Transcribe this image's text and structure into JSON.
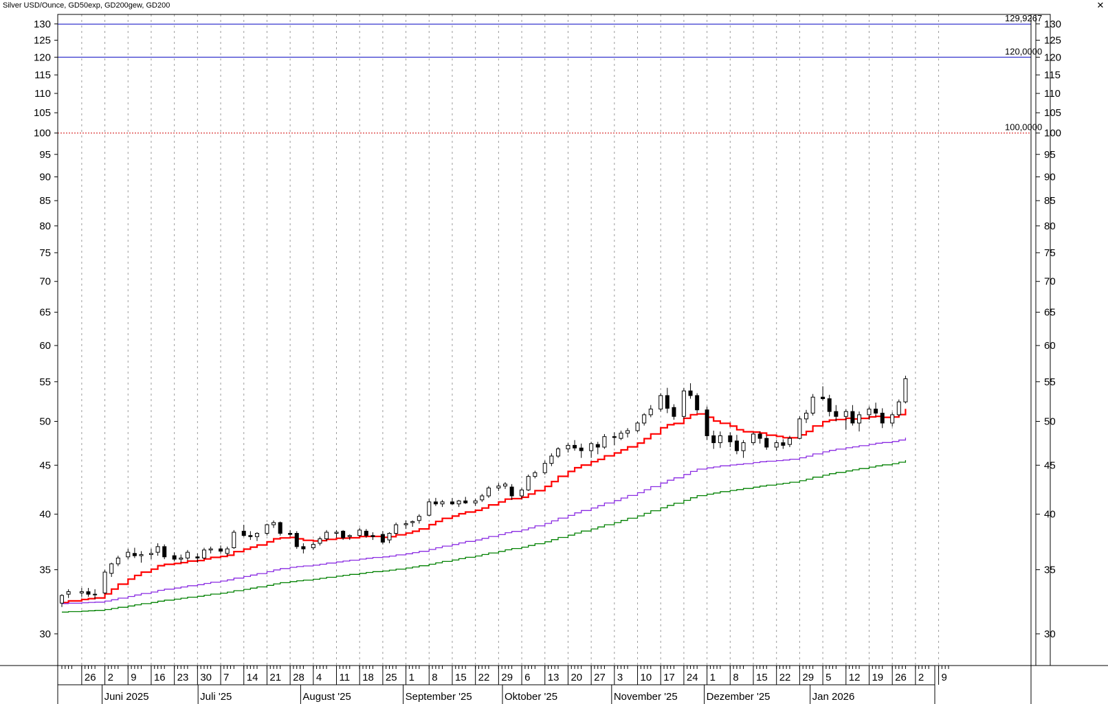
{
  "window": {
    "title": "Silver USD/Ounce,  GD50exp,  GD200gew,  GD200",
    "close_icon": "close-icon"
  },
  "chart_data": {
    "type": "candlestick",
    "symbol": "Silver USD/Ounce",
    "indicators": [
      "GD50exp",
      "GD200gew",
      "GD200"
    ],
    "y_scale": "log",
    "ylim": [
      27.8,
      133
    ],
    "y_ticks": [
      30,
      35,
      40,
      45,
      50,
      55,
      60,
      65,
      70,
      75,
      80,
      85,
      90,
      95,
      100,
      105,
      110,
      115,
      120,
      125,
      130
    ],
    "y_tick_labels": [
      "30",
      "35",
      "40",
      "45",
      "50",
      "55",
      "60",
      "65",
      "70",
      "75",
      "80",
      "85",
      "90",
      "95",
      "100",
      "105",
      "110",
      "115",
      "120",
      "125",
      "130"
    ],
    "horizontal_lines": [
      {
        "value": 129.9267,
        "label": "129,9267",
        "color": "#0000c0",
        "style": "solid"
      },
      {
        "value": 120.0,
        "label": "120,0000",
        "color": "#0000c0",
        "style": "solid"
      },
      {
        "value": 100.0,
        "label": "100,0000",
        "color": "#d00000",
        "style": "dotted"
      }
    ],
    "x_day_labels": [
      "26",
      "2",
      "9",
      "16",
      "23",
      "30",
      "7",
      "14",
      "21",
      "28",
      "4",
      "11",
      "18",
      "25",
      "1",
      "8",
      "15",
      "22",
      "29",
      "6",
      "13",
      "20",
      "27",
      "3",
      "10",
      "17",
      "24",
      "1",
      "8",
      "15",
      "22",
      "29",
      "5",
      "12",
      "19",
      "26",
      "2",
      "9"
    ],
    "x_month_labels": [
      "Juni 2025",
      "Juli '25",
      "August '25",
      "September '25",
      "Oktober '25",
      "November '25",
      "Dezember '25",
      "Jan 2026"
    ],
    "x_range": [
      "2025-05-20",
      "2026-02-12"
    ],
    "candles": [
      {
        "d": "2025-05-20",
        "o": 32.3,
        "h": 33.0,
        "l": 32.0,
        "c": 32.9
      },
      {
        "d": "2025-05-22",
        "o": 33.0,
        "h": 33.4,
        "l": 32.7,
        "c": 33.2
      },
      {
        "d": "2025-05-26",
        "o": 33.1,
        "h": 33.5,
        "l": 32.8,
        "c": 33.2
      },
      {
        "d": "2025-05-28",
        "o": 33.2,
        "h": 33.5,
        "l": 32.8,
        "c": 33.0
      },
      {
        "d": "2025-05-30",
        "o": 33.0,
        "h": 33.4,
        "l": 32.6,
        "c": 33.0
      },
      {
        "d": "2025-06-02",
        "o": 33.1,
        "h": 35.0,
        "l": 33.0,
        "c": 34.8
      },
      {
        "d": "2025-06-04",
        "o": 34.7,
        "h": 35.6,
        "l": 34.4,
        "c": 35.5
      },
      {
        "d": "2025-06-06",
        "o": 35.5,
        "h": 36.2,
        "l": 35.3,
        "c": 36.0
      },
      {
        "d": "2025-06-09",
        "o": 36.1,
        "h": 36.8,
        "l": 35.9,
        "c": 36.5
      },
      {
        "d": "2025-06-11",
        "o": 36.4,
        "h": 36.9,
        "l": 36.0,
        "c": 36.2
      },
      {
        "d": "2025-06-13",
        "o": 36.2,
        "h": 36.6,
        "l": 35.6,
        "c": 36.3
      },
      {
        "d": "2025-06-16",
        "o": 36.3,
        "h": 36.8,
        "l": 35.9,
        "c": 36.4
      },
      {
        "d": "2025-06-18",
        "o": 36.5,
        "h": 37.3,
        "l": 36.2,
        "c": 37.0
      },
      {
        "d": "2025-06-20",
        "o": 37.0,
        "h": 37.2,
        "l": 35.9,
        "c": 36.1
      },
      {
        "d": "2025-06-23",
        "o": 36.2,
        "h": 36.5,
        "l": 35.7,
        "c": 35.9
      },
      {
        "d": "2025-06-25",
        "o": 35.9,
        "h": 36.3,
        "l": 35.6,
        "c": 36.0
      },
      {
        "d": "2025-06-27",
        "o": 36.0,
        "h": 36.7,
        "l": 35.8,
        "c": 36.5
      },
      {
        "d": "2025-06-30",
        "o": 36.1,
        "h": 36.4,
        "l": 35.6,
        "c": 36.0
      },
      {
        "d": "2025-07-02",
        "o": 36.0,
        "h": 36.9,
        "l": 35.9,
        "c": 36.7
      },
      {
        "d": "2025-07-04",
        "o": 36.7,
        "h": 37.0,
        "l": 36.4,
        "c": 36.8
      },
      {
        "d": "2025-07-07",
        "o": 36.8,
        "h": 37.1,
        "l": 36.4,
        "c": 36.6
      },
      {
        "d": "2025-07-09",
        "o": 36.4,
        "h": 37.0,
        "l": 36.2,
        "c": 36.8
      },
      {
        "d": "2025-07-11",
        "o": 36.9,
        "h": 38.5,
        "l": 36.8,
        "c": 38.3
      },
      {
        "d": "2025-07-14",
        "o": 38.4,
        "h": 39.0,
        "l": 37.9,
        "c": 38.0
      },
      {
        "d": "2025-07-16",
        "o": 38.0,
        "h": 38.4,
        "l": 37.6,
        "c": 37.9
      },
      {
        "d": "2025-07-18",
        "o": 37.9,
        "h": 38.3,
        "l": 37.5,
        "c": 38.2
      },
      {
        "d": "2025-07-21",
        "o": 38.2,
        "h": 39.1,
        "l": 38.0,
        "c": 39.0
      },
      {
        "d": "2025-07-23",
        "o": 39.0,
        "h": 39.4,
        "l": 38.7,
        "c": 39.2
      },
      {
        "d": "2025-07-25",
        "o": 39.2,
        "h": 39.3,
        "l": 38.0,
        "c": 38.2
      },
      {
        "d": "2025-07-28",
        "o": 38.2,
        "h": 38.5,
        "l": 37.9,
        "c": 38.1
      },
      {
        "d": "2025-07-30",
        "o": 38.2,
        "h": 38.4,
        "l": 36.8,
        "c": 37.0
      },
      {
        "d": "2025-08-01",
        "o": 37.0,
        "h": 37.3,
        "l": 36.4,
        "c": 36.8
      },
      {
        "d": "2025-08-04",
        "o": 36.9,
        "h": 37.4,
        "l": 36.7,
        "c": 37.2
      },
      {
        "d": "2025-08-06",
        "o": 37.3,
        "h": 37.9,
        "l": 37.1,
        "c": 37.7
      },
      {
        "d": "2025-08-08",
        "o": 37.7,
        "h": 38.5,
        "l": 37.5,
        "c": 38.3
      },
      {
        "d": "2025-08-11",
        "o": 38.2,
        "h": 38.5,
        "l": 37.8,
        "c": 38.3
      },
      {
        "d": "2025-08-13",
        "o": 38.4,
        "h": 38.5,
        "l": 37.6,
        "c": 37.8
      },
      {
        "d": "2025-08-15",
        "o": 37.9,
        "h": 38.1,
        "l": 37.6,
        "c": 38.0
      },
      {
        "d": "2025-08-18",
        "o": 38.0,
        "h": 38.7,
        "l": 37.9,
        "c": 38.5
      },
      {
        "d": "2025-08-20",
        "o": 38.4,
        "h": 38.6,
        "l": 37.8,
        "c": 38.0
      },
      {
        "d": "2025-08-22",
        "o": 38.0,
        "h": 38.3,
        "l": 37.6,
        "c": 37.9
      },
      {
        "d": "2025-08-25",
        "o": 38.1,
        "h": 38.4,
        "l": 37.2,
        "c": 37.4
      },
      {
        "d": "2025-08-27",
        "o": 37.6,
        "h": 38.3,
        "l": 37.3,
        "c": 38.2
      },
      {
        "d": "2025-08-29",
        "o": 38.2,
        "h": 39.2,
        "l": 38.1,
        "c": 39.0
      },
      {
        "d": "2025-09-01",
        "o": 39.0,
        "h": 39.4,
        "l": 38.6,
        "c": 39.1
      },
      {
        "d": "2025-09-03",
        "o": 39.2,
        "h": 39.4,
        "l": 38.8,
        "c": 39.3
      },
      {
        "d": "2025-09-05",
        "o": 39.4,
        "h": 40.0,
        "l": 39.1,
        "c": 39.8
      },
      {
        "d": "2025-09-08",
        "o": 39.9,
        "h": 41.5,
        "l": 39.8,
        "c": 41.2
      },
      {
        "d": "2025-09-10",
        "o": 41.2,
        "h": 41.6,
        "l": 40.8,
        "c": 41.0
      },
      {
        "d": "2025-09-12",
        "o": 41.0,
        "h": 41.4,
        "l": 40.7,
        "c": 41.2
      },
      {
        "d": "2025-09-15",
        "o": 41.2,
        "h": 41.6,
        "l": 40.9,
        "c": 41.0
      },
      {
        "d": "2025-09-17",
        "o": 41.0,
        "h": 41.4,
        "l": 40.7,
        "c": 41.3
      },
      {
        "d": "2025-09-19",
        "o": 41.3,
        "h": 41.7,
        "l": 41.0,
        "c": 41.1
      },
      {
        "d": "2025-09-22",
        "o": 41.1,
        "h": 41.5,
        "l": 40.8,
        "c": 41.3
      },
      {
        "d": "2025-09-24",
        "o": 41.4,
        "h": 42.0,
        "l": 41.2,
        "c": 41.8
      },
      {
        "d": "2025-09-26",
        "o": 41.8,
        "h": 42.8,
        "l": 41.6,
        "c": 42.6
      },
      {
        "d": "2025-09-29",
        "o": 42.6,
        "h": 43.1,
        "l": 42.3,
        "c": 42.8
      },
      {
        "d": "2025-10-01",
        "o": 42.8,
        "h": 43.2,
        "l": 42.5,
        "c": 43.0
      },
      {
        "d": "2025-10-03",
        "o": 42.7,
        "h": 43.0,
        "l": 41.4,
        "c": 41.8
      },
      {
        "d": "2025-10-06",
        "o": 41.8,
        "h": 42.6,
        "l": 41.5,
        "c": 42.4
      },
      {
        "d": "2025-10-08",
        "o": 42.4,
        "h": 44.0,
        "l": 42.3,
        "c": 43.8
      },
      {
        "d": "2025-10-10",
        "o": 43.8,
        "h": 44.4,
        "l": 43.6,
        "c": 44.2
      },
      {
        "d": "2025-10-13",
        "o": 44.2,
        "h": 45.5,
        "l": 44.0,
        "c": 45.2
      },
      {
        "d": "2025-10-15",
        "o": 45.2,
        "h": 46.3,
        "l": 44.9,
        "c": 46.0
      },
      {
        "d": "2025-10-17",
        "o": 46.0,
        "h": 47.0,
        "l": 45.8,
        "c": 46.8
      },
      {
        "d": "2025-10-20",
        "o": 46.8,
        "h": 47.5,
        "l": 46.4,
        "c": 47.2
      },
      {
        "d": "2025-10-22",
        "o": 47.2,
        "h": 47.8,
        "l": 46.6,
        "c": 46.9
      },
      {
        "d": "2025-10-24",
        "o": 46.9,
        "h": 47.4,
        "l": 45.8,
        "c": 46.6
      },
      {
        "d": "2025-10-27",
        "o": 46.6,
        "h": 47.6,
        "l": 45.8,
        "c": 47.4
      },
      {
        "d": "2025-10-29",
        "o": 47.3,
        "h": 47.6,
        "l": 46.2,
        "c": 47.0
      },
      {
        "d": "2025-10-31",
        "o": 47.0,
        "h": 48.5,
        "l": 46.8,
        "c": 48.2
      },
      {
        "d": "2025-11-03",
        "o": 48.2,
        "h": 48.7,
        "l": 47.2,
        "c": 48.1
      },
      {
        "d": "2025-11-05",
        "o": 48.0,
        "h": 48.9,
        "l": 47.8,
        "c": 48.6
      },
      {
        "d": "2025-11-07",
        "o": 48.6,
        "h": 49.2,
        "l": 48.1,
        "c": 48.9
      },
      {
        "d": "2025-11-10",
        "o": 48.9,
        "h": 50.0,
        "l": 48.7,
        "c": 49.8
      },
      {
        "d": "2025-11-12",
        "o": 49.8,
        "h": 51.0,
        "l": 49.5,
        "c": 50.8
      },
      {
        "d": "2025-11-14",
        "o": 50.8,
        "h": 52.0,
        "l": 50.5,
        "c": 51.5
      },
      {
        "d": "2025-11-17",
        "o": 51.5,
        "h": 53.5,
        "l": 51.2,
        "c": 53.2
      },
      {
        "d": "2025-11-19",
        "o": 53.2,
        "h": 54.2,
        "l": 51.0,
        "c": 51.6
      },
      {
        "d": "2025-11-21",
        "o": 51.7,
        "h": 52.1,
        "l": 50.2,
        "c": 50.6
      },
      {
        "d": "2025-11-24",
        "o": 50.6,
        "h": 54.2,
        "l": 50.3,
        "c": 53.8
      },
      {
        "d": "2025-11-26",
        "o": 53.8,
        "h": 54.8,
        "l": 52.8,
        "c": 53.2
      },
      {
        "d": "2025-11-28",
        "o": 53.2,
        "h": 53.5,
        "l": 51.0,
        "c": 51.4
      },
      {
        "d": "2025-12-01",
        "o": 51.4,
        "h": 51.8,
        "l": 47.8,
        "c": 48.3
      },
      {
        "d": "2025-12-03",
        "o": 48.3,
        "h": 48.9,
        "l": 46.8,
        "c": 47.5
      },
      {
        "d": "2025-12-05",
        "o": 47.5,
        "h": 48.8,
        "l": 46.9,
        "c": 48.3
      },
      {
        "d": "2025-12-08",
        "o": 48.3,
        "h": 48.7,
        "l": 47.0,
        "c": 47.6
      },
      {
        "d": "2025-12-10",
        "o": 47.7,
        "h": 48.4,
        "l": 46.2,
        "c": 46.6
      },
      {
        "d": "2025-12-12",
        "o": 46.6,
        "h": 47.8,
        "l": 45.8,
        "c": 47.5
      },
      {
        "d": "2025-12-15",
        "o": 47.5,
        "h": 48.7,
        "l": 47.2,
        "c": 48.5
      },
      {
        "d": "2025-12-17",
        "o": 48.5,
        "h": 48.8,
        "l": 47.4,
        "c": 48.0
      },
      {
        "d": "2025-12-19",
        "o": 48.0,
        "h": 48.3,
        "l": 46.7,
        "c": 47.0
      },
      {
        "d": "2025-12-22",
        "o": 47.0,
        "h": 47.8,
        "l": 46.6,
        "c": 47.5
      },
      {
        "d": "2025-12-24",
        "o": 47.5,
        "h": 47.9,
        "l": 46.8,
        "c": 47.2
      },
      {
        "d": "2025-12-26",
        "o": 47.3,
        "h": 48.3,
        "l": 47.0,
        "c": 48.0
      },
      {
        "d": "2025-12-29",
        "o": 48.0,
        "h": 50.6,
        "l": 47.9,
        "c": 50.3
      },
      {
        "d": "2025-12-31",
        "o": 50.3,
        "h": 51.4,
        "l": 49.8,
        "c": 51.0
      },
      {
        "d": "2026-01-02",
        "o": 51.0,
        "h": 53.4,
        "l": 50.7,
        "c": 53.0
      },
      {
        "d": "2026-01-05",
        "o": 53.0,
        "h": 54.4,
        "l": 52.6,
        "c": 52.8
      },
      {
        "d": "2026-01-07",
        "o": 52.8,
        "h": 53.3,
        "l": 50.6,
        "c": 51.2
      },
      {
        "d": "2026-01-09",
        "o": 51.2,
        "h": 52.0,
        "l": 50.0,
        "c": 50.6
      },
      {
        "d": "2026-01-12",
        "o": 50.6,
        "h": 51.5,
        "l": 49.0,
        "c": 51.2
      },
      {
        "d": "2026-01-14",
        "o": 51.2,
        "h": 52.0,
        "l": 49.5,
        "c": 49.8
      },
      {
        "d": "2026-01-16",
        "o": 49.8,
        "h": 51.2,
        "l": 48.8,
        "c": 50.8
      },
      {
        "d": "2026-01-19",
        "o": 50.8,
        "h": 51.8,
        "l": 50.2,
        "c": 51.5
      },
      {
        "d": "2026-01-21",
        "o": 51.5,
        "h": 52.3,
        "l": 50.6,
        "c": 51.0
      },
      {
        "d": "2026-01-23",
        "o": 51.0,
        "h": 51.6,
        "l": 49.2,
        "c": 49.8
      },
      {
        "d": "2026-01-26",
        "o": 49.8,
        "h": 51.1,
        "l": 49.4,
        "c": 50.8
      },
      {
        "d": "2026-01-28",
        "o": 50.8,
        "h": 52.7,
        "l": 50.6,
        "c": 52.4
      },
      {
        "d": "2026-01-30",
        "o": 52.4,
        "h": 55.8,
        "l": 52.2,
        "c": 55.4
      }
    ]
  }
}
